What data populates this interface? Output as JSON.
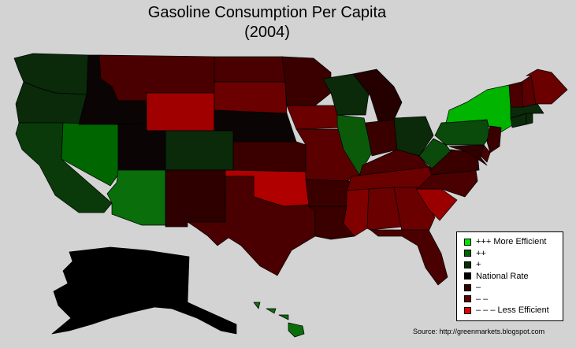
{
  "title": {
    "line1": "Gasoline Consumption Per Capita",
    "line2": "(2004)"
  },
  "legend": [
    {
      "label": "+++ More Efficient",
      "color": "#00e600"
    },
    {
      "label": "++",
      "color": "#006400"
    },
    {
      "label": "+",
      "color": "#003200"
    },
    {
      "label": "National Rate",
      "color": "#000000"
    },
    {
      "label": "–",
      "color": "#300000"
    },
    {
      "label": "– –",
      "color": "#600000"
    },
    {
      "label": "– – – Less Efficient",
      "color": "#e00000"
    }
  ],
  "source": "Source: http://greenmarkets.blogspot.com",
  "states": {
    "WA": "#0a2a0a",
    "OR": "#0a2a0a",
    "CA": "#0a3a0a",
    "NV": "#006600",
    "ID": "#0a0404",
    "MT": "#4a0000",
    "WY": "#a00000",
    "UT": "#0a0404",
    "AZ": "#0a6e0a",
    "CO": "#0a2a0a",
    "NM": "#2e0000",
    "TX": "#4a0000",
    "ND": "#4a0000",
    "SD": "#6a0000",
    "NE": "#0a0404",
    "KS": "#3a0000",
    "OK": "#b00000",
    "MN": "#3a0000",
    "IA": "#6a0000",
    "MO": "#5a0000",
    "AR": "#3a0000",
    "LA": "#3a0000",
    "WI": "#0a2a0a",
    "IL": "#0a5a0a",
    "MI": "#250000",
    "IN": "#3a0000",
    "OH": "#0a2a0a",
    "KY": "#4a0000",
    "TN": "#6a0000",
    "MS": "#800000",
    "AL": "#6a0000",
    "GA": "#6a0000",
    "FL": "#4a0000",
    "SC": "#9a0000",
    "NC": "#4a0000",
    "VA": "#3a0000",
    "WV": "#0a4a0a",
    "PA": "#0a4a0a",
    "NY": "#00b400",
    "NJ": "#3a0000",
    "DE": "#4a0000",
    "MD": "#300000",
    "CT": "#0a2a0a",
    "RI": "#0a2a0a",
    "MA": "#0a2a0a",
    "VT": "#4a0000",
    "NH": "#5a0000",
    "ME": "#6a0000",
    "AK": "#000000",
    "HI": "#0a6e0a"
  }
}
